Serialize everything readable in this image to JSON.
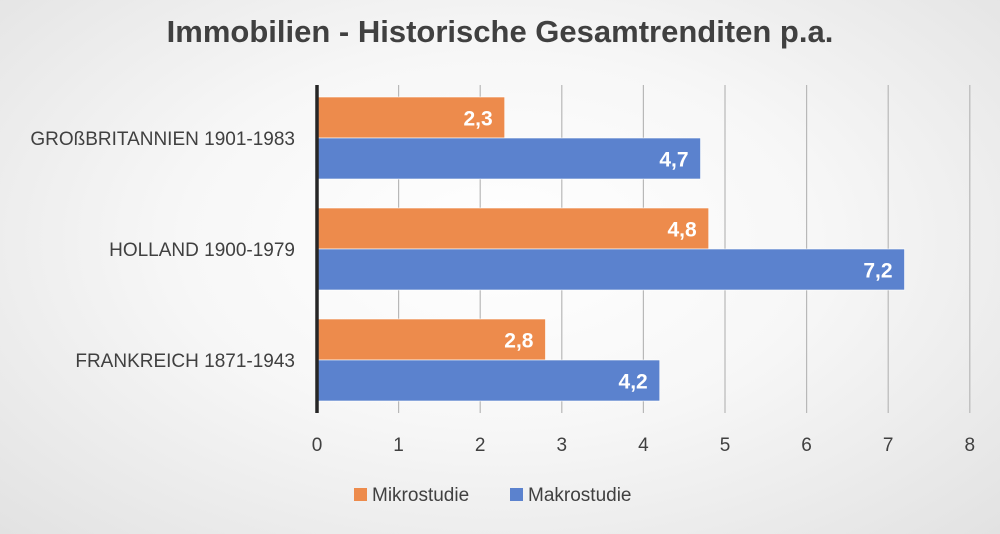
{
  "chart_data": {
    "type": "bar",
    "orientation": "horizontal",
    "title": "Immobilien - Historische Gesamtrenditen p.a.",
    "categories": [
      "GROßBRITANNIEN 1901-1983",
      "HOLLAND 1900-1979",
      "FRANKREICH 1871-1943"
    ],
    "series": [
      {
        "name": "Mikrostudie",
        "color": "#ED8B4C",
        "values": [
          2.3,
          4.8,
          2.8
        ],
        "labels": [
          "2,3",
          "4,8",
          "2,8"
        ]
      },
      {
        "name": "Makrostudie",
        "color": "#5B82CE",
        "values": [
          4.7,
          7.2,
          4.2
        ],
        "labels": [
          "4,7",
          "7,2",
          "4,2"
        ]
      }
    ],
    "xlim": [
      0,
      8
    ],
    "xticks": [
      "0",
      "1",
      "2",
      "3",
      "4",
      "5",
      "6",
      "7",
      "8"
    ],
    "xlabel": "",
    "ylabel": "",
    "grid": true,
    "legend_position": "bottom"
  }
}
